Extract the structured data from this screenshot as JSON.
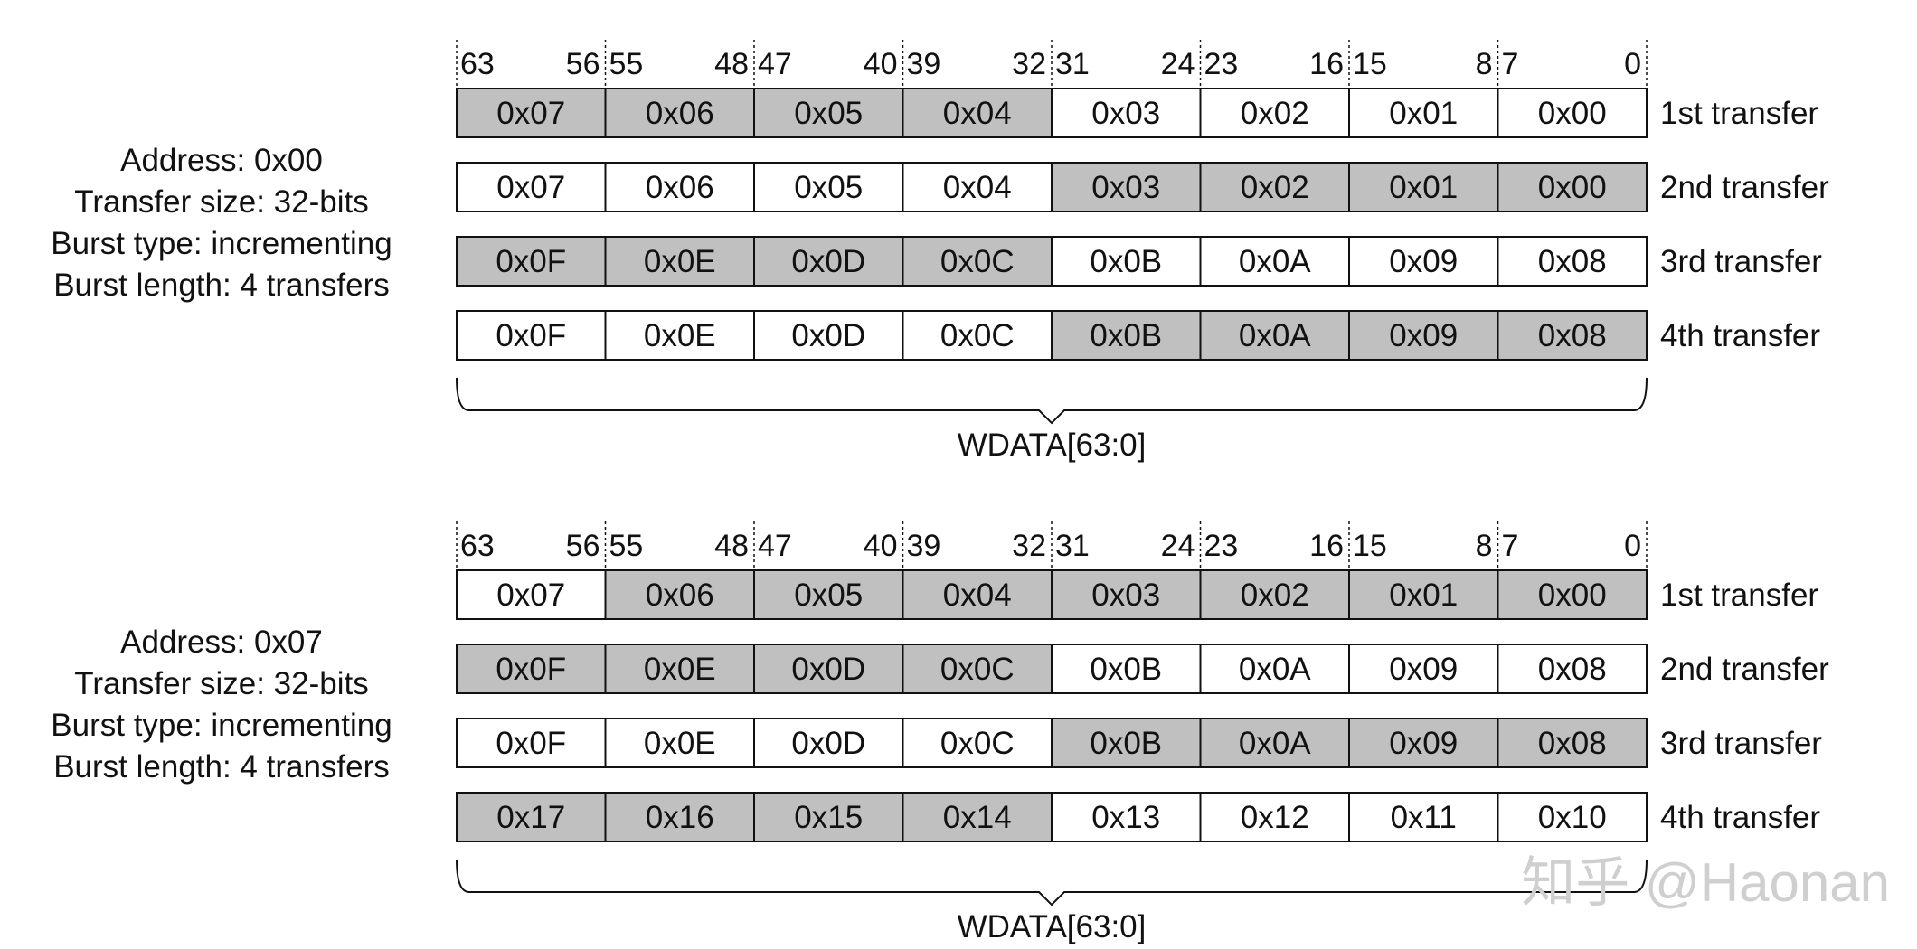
{
  "panels": [
    {
      "description": [
        "Address: 0x00",
        "Transfer size: 32-bits",
        "Burst type: incrementing",
        "Burst length: 4 transfers"
      ],
      "bit_labels": [
        [
          "63",
          "56"
        ],
        [
          "55",
          "48"
        ],
        [
          "47",
          "40"
        ],
        [
          "39",
          "32"
        ],
        [
          "31",
          "24"
        ],
        [
          "23",
          "16"
        ],
        [
          "15",
          "8"
        ],
        [
          "7",
          "0"
        ]
      ],
      "rows": [
        {
          "label": "1st transfer",
          "cells": [
            "0x07",
            "0x06",
            "0x05",
            "0x04",
            "0x03",
            "0x02",
            "0x01",
            "0x00"
          ],
          "active": [
            true,
            true,
            true,
            true,
            false,
            false,
            false,
            false
          ]
        },
        {
          "label": "2nd transfer",
          "cells": [
            "0x07",
            "0x06",
            "0x05",
            "0x04",
            "0x03",
            "0x02",
            "0x01",
            "0x00"
          ],
          "active": [
            false,
            false,
            false,
            false,
            true,
            true,
            true,
            true
          ]
        },
        {
          "label": "3rd transfer",
          "cells": [
            "0x0F",
            "0x0E",
            "0x0D",
            "0x0C",
            "0x0B",
            "0x0A",
            "0x09",
            "0x08"
          ],
          "active": [
            true,
            true,
            true,
            true,
            false,
            false,
            false,
            false
          ]
        },
        {
          "label": "4th transfer",
          "cells": [
            "0x0F",
            "0x0E",
            "0x0D",
            "0x0C",
            "0x0B",
            "0x0A",
            "0x09",
            "0x08"
          ],
          "active": [
            false,
            false,
            false,
            false,
            true,
            true,
            true,
            true
          ]
        }
      ],
      "bus_label": "WDATA[63:0]"
    },
    {
      "description": [
        "Address: 0x07",
        "Transfer size: 32-bits",
        "Burst type: incrementing",
        "Burst length: 4 transfers"
      ],
      "bit_labels": [
        [
          "63",
          "56"
        ],
        [
          "55",
          "48"
        ],
        [
          "47",
          "40"
        ],
        [
          "39",
          "32"
        ],
        [
          "31",
          "24"
        ],
        [
          "23",
          "16"
        ],
        [
          "15",
          "8"
        ],
        [
          "7",
          "0"
        ]
      ],
      "rows": [
        {
          "label": "1st transfer",
          "cells": [
            "0x07",
            "0x06",
            "0x05",
            "0x04",
            "0x03",
            "0x02",
            "0x01",
            "0x00"
          ],
          "active": [
            false,
            true,
            true,
            true,
            true,
            true,
            true,
            true
          ]
        },
        {
          "label": "2nd transfer",
          "cells": [
            "0x0F",
            "0x0E",
            "0x0D",
            "0x0C",
            "0x0B",
            "0x0A",
            "0x09",
            "0x08"
          ],
          "active": [
            true,
            true,
            true,
            true,
            false,
            false,
            false,
            false
          ]
        },
        {
          "label": "3rd transfer",
          "cells": [
            "0x0F",
            "0x0E",
            "0x0D",
            "0x0C",
            "0x0B",
            "0x0A",
            "0x09",
            "0x08"
          ],
          "active": [
            false,
            false,
            false,
            false,
            true,
            true,
            true,
            true
          ]
        },
        {
          "label": "4th transfer",
          "cells": [
            "0x17",
            "0x16",
            "0x15",
            "0x14",
            "0x13",
            "0x12",
            "0x11",
            "0x10"
          ],
          "active": [
            true,
            true,
            true,
            true,
            false,
            false,
            false,
            false
          ]
        }
      ],
      "bus_label": "WDATA[63:0]"
    }
  ],
  "watermark": "知乎 @Haonan",
  "colors": {
    "active_fill": "#c0c0c0",
    "inactive_fill": "#ffffff",
    "stroke": "#111111",
    "watermark": "#cfcfcf"
  }
}
